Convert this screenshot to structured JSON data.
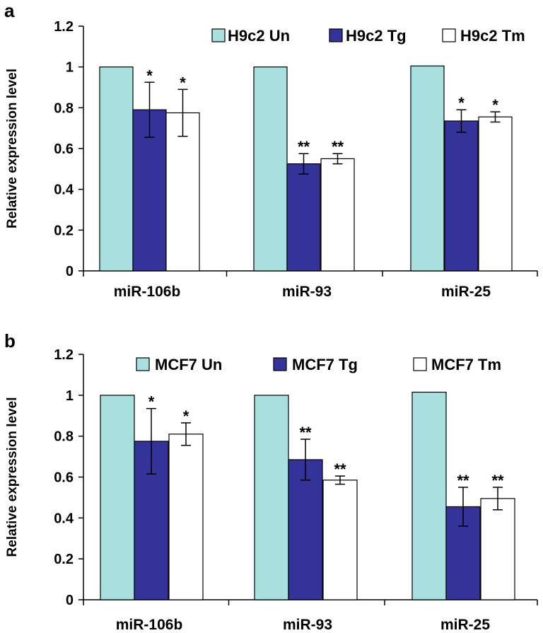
{
  "chart_data": [
    {
      "panel": "a",
      "type": "bar",
      "ylabel": "Relative expression level",
      "ylim": [
        0,
        1.2
      ],
      "yticks": [
        "0",
        "0.2",
        "0.4",
        "0.6",
        "0.8",
        "1",
        "1.2"
      ],
      "categories": [
        "miR-106b",
        "miR-93",
        "miR-25"
      ],
      "legend_position": "top-right",
      "series": [
        {
          "name": "H9c2 Un",
          "color": "#a8e0e0",
          "values": [
            1.0,
            1.0,
            1.005
          ],
          "errors": [
            0,
            0,
            0
          ],
          "sig": [
            "",
            "",
            ""
          ]
        },
        {
          "name": "H9c2 Tg",
          "color": "#333399",
          "values": [
            0.79,
            0.525,
            0.735
          ],
          "errors": [
            0.135,
            0.05,
            0.055
          ],
          "sig": [
            "*",
            "**",
            "*"
          ]
        },
        {
          "name": "H9c2 Tm",
          "color": "#ffffff",
          "values": [
            0.775,
            0.55,
            0.755
          ],
          "errors": [
            0.115,
            0.025,
            0.025
          ],
          "sig": [
            "*",
            "**",
            "*"
          ]
        }
      ]
    },
    {
      "panel": "b",
      "type": "bar",
      "ylabel": "Relative expression level",
      "ylim": [
        0,
        1.2
      ],
      "yticks": [
        "0",
        "0.2",
        "0.4",
        "0.6",
        "0.8",
        "1",
        "1.2"
      ],
      "categories": [
        "miR-106b",
        "miR-93",
        "miR-25"
      ],
      "legend_position": "top-right",
      "series": [
        {
          "name": "MCF7 Un",
          "color": "#a8e0e0",
          "values": [
            1.0,
            1.0,
            1.015
          ],
          "errors": [
            0,
            0,
            0
          ],
          "sig": [
            "",
            "",
            ""
          ]
        },
        {
          "name": "MCF7 Tg",
          "color": "#333399",
          "values": [
            0.775,
            0.685,
            0.455
          ],
          "errors": [
            0.16,
            0.1,
            0.095
          ],
          "sig": [
            "*",
            "**",
            "**"
          ]
        },
        {
          "name": "MCF7 Tm",
          "color": "#ffffff",
          "values": [
            0.81,
            0.585,
            0.495
          ],
          "errors": [
            0.055,
            0.02,
            0.055
          ],
          "sig": [
            "*",
            "**",
            "**"
          ]
        }
      ]
    }
  ]
}
